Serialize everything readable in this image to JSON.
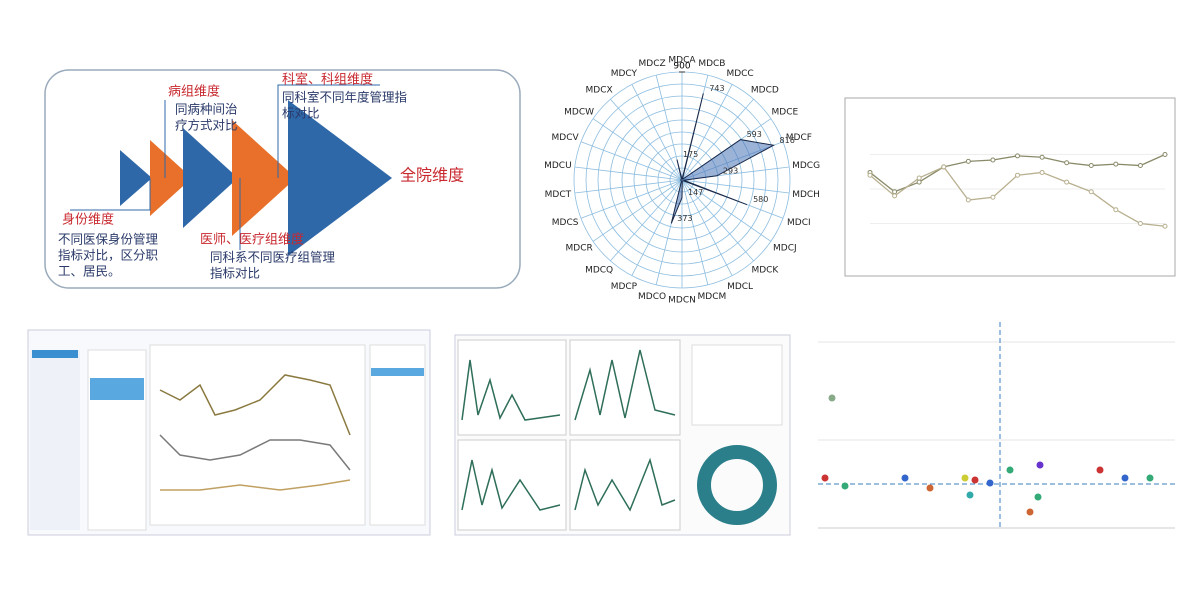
{
  "diagram": {
    "steps": [
      {
        "title": "身份维度",
        "lines": [
          "不同医保身份管理",
          "指标对比，区分职",
          "工、居民。"
        ]
      },
      {
        "title": "病组维度",
        "lines": [
          "同病种间治",
          "疗方式对比"
        ]
      },
      {
        "title": "医师、医疗组维度",
        "lines": [
          "同科系不同医疗组管理",
          "指标对比"
        ]
      },
      {
        "title": "科室、科组维度",
        "lines": [
          "同科室不同年度管理指",
          "标对比"
        ]
      }
    ],
    "final": "全院维度"
  },
  "chart_data": [
    {
      "type": "radar",
      "categories": [
        "MDCA",
        "MDCB",
        "MDCC",
        "MDCD",
        "MDCE",
        "MDCF",
        "MDCG",
        "MDCH",
        "MDCI",
        "MDCJ",
        "MDCK",
        "MDCL",
        "MDCM",
        "MDCN",
        "MDCO",
        "MDCP",
        "MDCQ",
        "MDCR",
        "MDCS",
        "MDCT",
        "MDCU",
        "MDCV",
        "MDCW",
        "MDCX",
        "MDCY",
        "MDCZ"
      ],
      "values": [
        5,
        743,
        10,
        10,
        593,
        816,
        293,
        15,
        580,
        10,
        10,
        10,
        10,
        147,
        373,
        10,
        10,
        10,
        10,
        10,
        10,
        10,
        10,
        10,
        10,
        175
      ],
      "color": "#4a74b8",
      "rlim": [
        0,
        900
      ],
      "rticks": [
        900
      ]
    },
    {
      "type": "line",
      "series": [
        {
          "color": "#8a8a6a",
          "values": [
            62,
            48,
            55,
            66,
            70,
            71,
            74,
            73,
            69,
            67,
            68,
            67,
            75
          ]
        },
        {
          "color": "#b8b090",
          "values": [
            60,
            45,
            58,
            66,
            42,
            44,
            60,
            62,
            55,
            48,
            35,
            25,
            23
          ]
        }
      ],
      "ylim": [
        0,
        100
      ]
    }
  ]
}
